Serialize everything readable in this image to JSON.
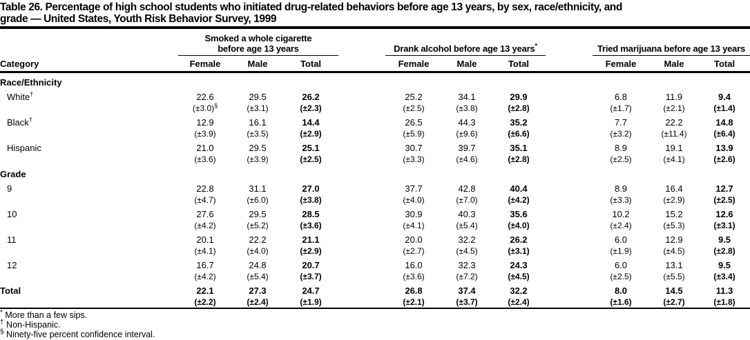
{
  "header": {
    "title_line1": "Table 26. Percentage of high school students who initiated drug-related behaviors before age 13 years, by sex, race/ethnicity, and",
    "title_line2": "grade — United States, Youth Risk Behavior Survey, 1999"
  },
  "table": {
    "category_header": "Category",
    "groups": [
      {
        "line1": "Smoked a whole cigarette",
        "line2": "before age 13 years",
        "sup": ""
      },
      {
        "line1": "Drank alcohol before age 13 years",
        "line2": "",
        "sup": "*"
      },
      {
        "line1": "Tried marijuana before age 13 years",
        "line2": "",
        "sup": ""
      }
    ],
    "sub": [
      "Female",
      "Male",
      "Total"
    ],
    "rows": [
      {
        "type": "section",
        "label": "Race/Ethnicity"
      },
      {
        "type": "data",
        "label": "White",
        "sup": "†",
        "indent": true,
        "values": [
          "22.6",
          "29.5",
          "26.2",
          "25.2",
          "34.1",
          "29.9",
          "6.8",
          "11.9",
          "9.4"
        ],
        "ci": [
          "(±3.0)",
          "(±3.1)",
          "(±2.3)",
          "(±2.5)",
          "(±3.8)",
          "(±2.8)",
          "(±1.7)",
          "(±2.1)",
          "(±1.4)"
        ],
        "ci_sups": [
          "§",
          "",
          "",
          "",
          "",
          "",
          "",
          "",
          ""
        ]
      },
      {
        "type": "data",
        "label": "Black",
        "sup": "†",
        "indent": true,
        "values": [
          "12.9",
          "16.1",
          "14.4",
          "26.5",
          "44.3",
          "35.2",
          "7.7",
          "22.2",
          "14.8"
        ],
        "ci": [
          "(±3.9)",
          "(±3.5)",
          "(±2.9)",
          "(±5.9)",
          "(±9.6)",
          "(±6.6)",
          "(±3.2)",
          "(±11.4)",
          "(±6.4)"
        ]
      },
      {
        "type": "data",
        "label": "Hispanic",
        "indent": true,
        "values": [
          "21.0",
          "29.5",
          "25.1",
          "30.7",
          "39.7",
          "35.1",
          "8.9",
          "19.1",
          "13.9"
        ],
        "ci": [
          "(±3.6)",
          "(±3.9)",
          "(±2.5)",
          "(±3.3)",
          "(±4.6)",
          "(±2.8)",
          "(±2.5)",
          "(±4.1)",
          "(±2.6)"
        ]
      },
      {
        "type": "section",
        "label": "Grade"
      },
      {
        "type": "data",
        "label": "9",
        "indent": true,
        "values": [
          "22.8",
          "31.1",
          "27.0",
          "37.7",
          "42.8",
          "40.4",
          "8.9",
          "16.4",
          "12.7"
        ],
        "ci": [
          "(±4.7)",
          "(±6.0)",
          "(±3.8)",
          "(±4.0)",
          "(±7.0)",
          "(±4.2)",
          "(±3.3)",
          "(±2.9)",
          "(±2.5)"
        ]
      },
      {
        "type": "data",
        "label": "10",
        "indent": true,
        "values": [
          "27.6",
          "29.5",
          "28.5",
          "30.9",
          "40.3",
          "35.6",
          "10.2",
          "15.2",
          "12.6"
        ],
        "ci": [
          "(±4.2)",
          "(±5.2)",
          "(±3.6)",
          "(±4.1)",
          "(±5.4)",
          "(±4.0)",
          "(±2.4)",
          "(±5.3)",
          "(±3.1)"
        ]
      },
      {
        "type": "data",
        "label": "11",
        "indent": true,
        "values": [
          "20.1",
          "22.2",
          "21.1",
          "20.0",
          "32.2",
          "26.2",
          "6.0",
          "12.9",
          "9.5"
        ],
        "ci": [
          "(±4.1)",
          "(±4.0)",
          "(±2.9)",
          "(±2.7)",
          "(±4.5)",
          "(±3.1)",
          "(±1.9)",
          "(±4.5)",
          "(±2.8)"
        ]
      },
      {
        "type": "data",
        "label": "12",
        "indent": true,
        "values": [
          "16.7",
          "24.8",
          "20.7",
          "16.0",
          "32.3",
          "24.3",
          "6.0",
          "13.1",
          "9.5"
        ],
        "ci": [
          "(±4.2)",
          "(±5.4)",
          "(±3.7)",
          "(±3.6)",
          "(±7.2)",
          "(±4.5)",
          "(±2.5)",
          "(±5.5)",
          "(±3.4)"
        ]
      },
      {
        "type": "data",
        "label": "Total",
        "bold": true,
        "values": [
          "22.1",
          "27.3",
          "24.7",
          "26.8",
          "37.4",
          "32.2",
          "8.0",
          "14.5",
          "11.3"
        ],
        "ci": [
          "(±2.2)",
          "(±2.4)",
          "(±1.9)",
          "(±2.1)",
          "(±3.7)",
          "(±2.4)",
          "(±1.6)",
          "(±2.7)",
          "(±1.8)"
        ]
      }
    ],
    "footnotes": [
      {
        "marker": "*",
        "text": "More than a few sips."
      },
      {
        "marker": "†",
        "text": "Non-Hispanic."
      },
      {
        "marker": "§",
        "text": "Ninety-five percent confidence interval."
      }
    ]
  }
}
